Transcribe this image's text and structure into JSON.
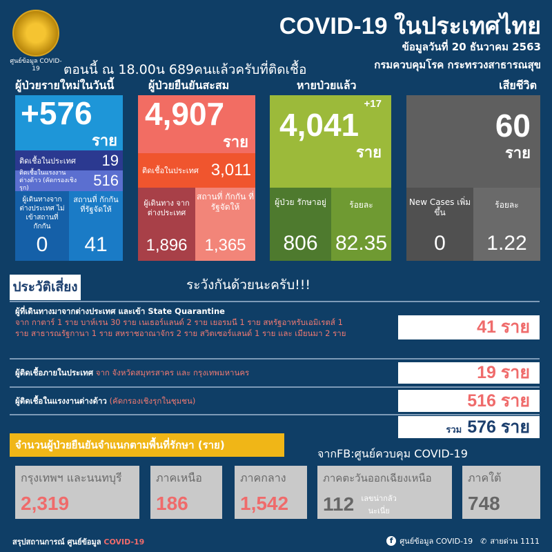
{
  "header": {
    "logo_text": "ศูนย์ข้อมูล COVID-19",
    "title": "COVID-19 ในประเทศไทย",
    "date": "ข้อมูลวันที่ 20 ธันวาคม 2563",
    "dept": "กรมควบคุมโรค กระทรวงสาธารณสุข",
    "now_text": "ตอนนี้ ณ 18.00น 689คนแล้วครับที่ติดเชื้อ"
  },
  "unit": "ราย",
  "new_cases": {
    "header": "ผู้ป่วยรายใหม่ในวันนี้",
    "value": "+576",
    "domestic_label": "ติดเชื้อในประเทศ",
    "domestic": "19",
    "migrant_label": "ติดเชื้อในแรงงานต่างด้าว (คัดกรองเชิงรุก)",
    "migrant": "516",
    "traveler_label": "ผู้เดินทางจากต่างประเทศ ไม่เข้าสถานที่กักกัน",
    "traveler": "0",
    "quarantine_label": "สถานที่ กักกัน ที่รัฐจัดให้",
    "quarantine": "41",
    "color": "#1e96d8"
  },
  "confirmed": {
    "header": "ผู้ป่วยยืนยันสะสม",
    "value": "4,907",
    "domestic_label": "ติดเชื้อในประเทศ",
    "domestic": "3,011",
    "traveler_label": "ผู้เดินทาง จากต่างประเทศ",
    "traveler": "1,896",
    "quarantine_label": "สถานที่ กักกัน ที่รัฐจัดให้",
    "quarantine": "1,365",
    "color": "#f26d63"
  },
  "recovered": {
    "header": "หายป่วยแล้ว",
    "delta": "+17",
    "value": "4,041",
    "treating_label": "ผู้ป่วย รักษาอยู่",
    "treating": "806",
    "pct_label": "ร้อยละ",
    "pct": "82.35",
    "color": "#9cba3a"
  },
  "deaths": {
    "header": "เสียชีวิต",
    "value": "60",
    "new_label": "New Cases เพิ่มขึ้น",
    "new": "0",
    "pct_label": "ร้อยละ",
    "pct": "1.22",
    "color": "#5f5f5f"
  },
  "risk": {
    "tab": "ประวัติเสี่ยง",
    "warning": "ระวังกันด้วยนะครับ!!!",
    "rows": [
      {
        "title": "ผู้ที่เดินทางมาจากต่างประเทศ และเข้า State Quarantine",
        "detail": "จาก กาตาร์ 1 ราย บาห์เรน 30 ราย เนเธอร์แลนด์ 2 ราย เยอรมนี 1 ราย สหรัฐอาหรับเอมิเรตส์ 1 ราย สาธารณรัฐกานา 1 ราย สหราชอาณาจักร 2 ราย สวิตเซอร์แลนด์ 1 ราย และ เมียนมา 2 ราย",
        "value": "41 ราย"
      },
      {
        "title": "ผู้ติดเชื้อภายในประเทศ",
        "detail": "จาก จังหวัดสมุทรสาคร และ กรุงเทพมหานคร",
        "value": "19 ราย"
      },
      {
        "title": "ผู้ติดเชื้อในแรงงานต่างด้าว",
        "detail": "(คัดกรองเชิงรุกในชุมชน)",
        "value": "516 ราย"
      }
    ],
    "total_label": "รวม",
    "total": "576 ราย"
  },
  "regions": {
    "banner": "จำนวนผู้ป่วยยืนยันจำแนกตามพื้นที่รักษา (ราย)",
    "source": "จากFB:ศูนย์ควบคุม COVID-19",
    "items": [
      {
        "label": "กรุงเทพฯ และนนทบุรี",
        "value": "2,319"
      },
      {
        "label": "ภาคเหนือ",
        "value": "186"
      },
      {
        "label": "ภาคกลาง",
        "value": "1,542"
      },
      {
        "label": "ภาคตะวันออกเฉียงเหนือ",
        "value": "112",
        "note": "เลขน่ากลัว นะเนี่ย"
      },
      {
        "label": "ภาคใต้",
        "value": "748"
      }
    ]
  },
  "footer": {
    "left": "สรุปสถานการณ์ ศูนย์ข้อมูล",
    "left_accent": "COVID-19",
    "page": "ศูนย์ข้อมูล COVID-19",
    "hotline": "สายด่วน 1111"
  }
}
